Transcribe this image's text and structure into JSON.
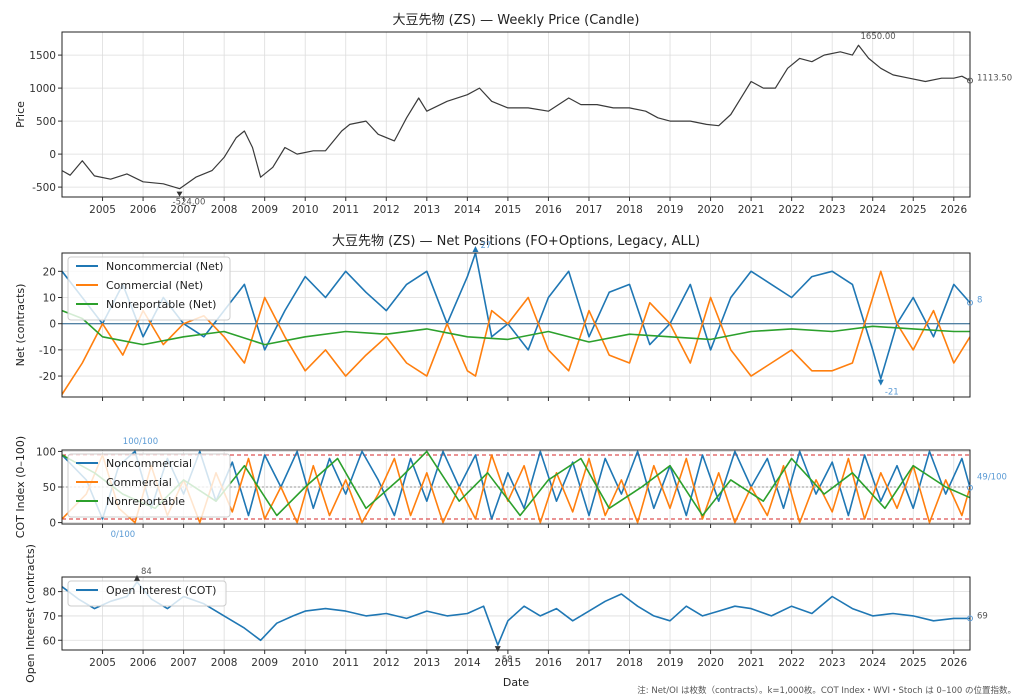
{
  "footnote": "注: Net/OI は枚数（contracts）。k=1,000枚。COT Index・WVI・Stoch は 0–100 の位置指数。",
  "x_axis": {
    "label": "Date",
    "ticks": [
      "2005",
      "2006",
      "2007",
      "2008",
      "2009",
      "2010",
      "2011",
      "2012",
      "2013",
      "2014",
      "2015",
      "2016",
      "2017",
      "2018",
      "2019",
      "2020",
      "2021",
      "2022",
      "2023",
      "2024",
      "2025",
      "2026"
    ],
    "range": [
      2004.0,
      2026.4
    ]
  },
  "colors": {
    "price": "#3a3a3a",
    "noncommercial": "#1f77b4",
    "commercial": "#ff7f0e",
    "nonreportable": "#2ca02c",
    "grid": "#dddddd",
    "refline": "#d62728",
    "annot": "#5b9bd5"
  },
  "chart_data": [
    {
      "id": "price",
      "type": "line",
      "title": "大豆先物 (ZS) — Weekly Price (Candle)",
      "ylabel": "Price",
      "ylim": [
        -650,
        1850
      ],
      "yticks": [
        "-500",
        "0",
        "500",
        "1000",
        "1500"
      ],
      "series": [
        {
          "color": "#3a3a3a",
          "x": [
            2004.0,
            2004.2,
            2004.5,
            2004.8,
            2005.2,
            2005.6,
            2006.0,
            2006.5,
            2006.9,
            2007.3,
            2007.7,
            2008.0,
            2008.3,
            2008.5,
            2008.7,
            2008.9,
            2009.2,
            2009.5,
            2009.8,
            2010.2,
            2010.5,
            2010.9,
            2011.1,
            2011.5,
            2011.8,
            2012.2,
            2012.5,
            2012.8,
            2013.0,
            2013.5,
            2014.0,
            2014.3,
            2014.6,
            2015.0,
            2015.5,
            2016.0,
            2016.5,
            2016.8,
            2017.2,
            2017.6,
            2018.0,
            2018.4,
            2018.7,
            2019.0,
            2019.5,
            2019.9,
            2020.2,
            2020.5,
            2020.8,
            2021.0,
            2021.3,
            2021.6,
            2021.9,
            2022.2,
            2022.5,
            2022.8,
            2023.2,
            2023.5,
            2023.65,
            2023.9,
            2024.2,
            2024.5,
            2024.9,
            2025.3,
            2025.7,
            2026.0,
            2026.2,
            2026.4
          ],
          "y": [
            -250,
            -320,
            -100,
            -330,
            -380,
            -300,
            -420,
            -450,
            -524,
            -350,
            -250,
            -50,
            250,
            350,
            100,
            -350,
            -200,
            100,
            0,
            50,
            50,
            350,
            450,
            500,
            300,
            200,
            550,
            850,
            650,
            800,
            900,
            1000,
            800,
            700,
            700,
            650,
            850,
            750,
            750,
            700,
            700,
            650,
            550,
            500,
            500,
            450,
            430,
            600,
            900,
            1100,
            1000,
            1000,
            1300,
            1450,
            1400,
            1500,
            1550,
            1500,
            1650,
            1450,
            1300,
            1200,
            1150,
            1100,
            1150,
            1150,
            1180,
            1113.5
          ]
        }
      ],
      "annotations": [
        {
          "text": "-524.00"
        },
        {
          "text": "1650.00"
        }
      ],
      "last_value_label": "1113.50"
    },
    {
      "id": "net",
      "type": "line",
      "title": "大豆先物 (ZS) — Net Positions (FO+Options, Legacy, ALL)",
      "ylabel": "Net (contracts)",
      "ylim": [
        -28,
        27
      ],
      "yticks": [
        "-20",
        "-10",
        "0",
        "10",
        "20"
      ],
      "legend": {
        "placement": "top-left",
        "entries": [
          "Noncommercial (Net)",
          "Commercial (Net)",
          "Nonreportable (Net)"
        ]
      },
      "series": [
        {
          "name": "Noncommercial (Net)",
          "color": "#1f77b4",
          "x": [
            2004.0,
            2004.5,
            2005.0,
            2005.5,
            2006.0,
            2006.5,
            2007.0,
            2007.5,
            2008.0,
            2008.5,
            2009.0,
            2009.5,
            2010.0,
            2010.5,
            2011.0,
            2011.5,
            2012.0,
            2012.5,
            2013.0,
            2013.5,
            2014.0,
            2014.2,
            2014.6,
            2015.0,
            2015.5,
            2016.0,
            2016.5,
            2017.0,
            2017.5,
            2018.0,
            2018.5,
            2019.0,
            2019.5,
            2020.0,
            2020.5,
            2021.0,
            2021.5,
            2022.0,
            2022.5,
            2023.0,
            2023.5,
            2024.0,
            2024.2,
            2024.6,
            2025.0,
            2025.5,
            2026.0,
            2026.4
          ],
          "y": [
            20,
            10,
            0,
            15,
            -5,
            10,
            0,
            -5,
            5,
            15,
            -10,
            5,
            18,
            10,
            20,
            12,
            5,
            15,
            20,
            0,
            18,
            27,
            -5,
            0,
            -10,
            10,
            20,
            -5,
            12,
            15,
            -8,
            0,
            15,
            -10,
            10,
            20,
            15,
            10,
            18,
            20,
            15,
            -10,
            -21,
            0,
            10,
            -5,
            15,
            8
          ]
        },
        {
          "name": "Commercial (Net)",
          "color": "#ff7f0e",
          "x": [
            2004.0,
            2004.5,
            2005.0,
            2005.5,
            2006.0,
            2006.5,
            2007.0,
            2007.5,
            2008.0,
            2008.5,
            2009.0,
            2009.5,
            2010.0,
            2010.5,
            2011.0,
            2011.5,
            2012.0,
            2012.5,
            2013.0,
            2013.5,
            2014.0,
            2014.2,
            2014.6,
            2015.0,
            2015.5,
            2016.0,
            2016.5,
            2017.0,
            2017.5,
            2018.0,
            2018.5,
            2019.0,
            2019.5,
            2020.0,
            2020.5,
            2021.0,
            2021.5,
            2022.0,
            2022.5,
            2023.0,
            2023.5,
            2024.0,
            2024.2,
            2024.6,
            2025.0,
            2025.5,
            2026.0,
            2026.4
          ],
          "y": [
            -27,
            -15,
            0,
            -12,
            5,
            -8,
            0,
            3,
            -5,
            -15,
            10,
            -5,
            -18,
            -10,
            -20,
            -12,
            -5,
            -15,
            -20,
            0,
            -18,
            -20,
            5,
            0,
            10,
            -10,
            -18,
            5,
            -12,
            -15,
            8,
            0,
            -15,
            10,
            -10,
            -20,
            -15,
            -10,
            -18,
            -18,
            -15,
            10,
            20,
            0,
            -10,
            5,
            -15,
            -5
          ]
        },
        {
          "name": "Nonreportable (Net)",
          "color": "#2ca02c",
          "x": [
            2004.0,
            2004.5,
            2005.0,
            2006.0,
            2007.0,
            2008.0,
            2009.0,
            2010.0,
            2011.0,
            2012.0,
            2013.0,
            2014.0,
            2015.0,
            2016.0,
            2017.0,
            2018.0,
            2019.0,
            2020.0,
            2021.0,
            2022.0,
            2023.0,
            2024.0,
            2025.0,
            2026.0,
            2026.4
          ],
          "y": [
            5,
            2,
            -5,
            -8,
            -5,
            -3,
            -8,
            -5,
            -3,
            -4,
            -2,
            -5,
            -6,
            -3,
            -7,
            -4,
            -5,
            -6,
            -3,
            -2,
            -3,
            -1,
            -2,
            -3,
            -3
          ]
        }
      ],
      "annotations": [
        {
          "text": "27"
        },
        {
          "text": "-21"
        }
      ],
      "last_value_label": "8"
    },
    {
      "id": "cot",
      "type": "line",
      "title": "",
      "ylabel": "COT Index (0–100)",
      "ylim": [
        -2,
        102
      ],
      "yticks": [
        "0",
        "50",
        "100"
      ],
      "ref_lines": [
        5,
        50,
        95
      ],
      "legend": {
        "placement": "top-left",
        "entries": [
          "Noncommercial",
          "Commercial",
          "Nonreportable"
        ]
      },
      "series": [
        {
          "name": "Noncommercial",
          "color": "#1f77b4",
          "x": [
            2004.0,
            2004.6,
            2005.0,
            2005.4,
            2005.8,
            2006.2,
            2006.6,
            2007.0,
            2007.4,
            2007.8,
            2008.2,
            2008.6,
            2009.0,
            2009.4,
            2009.8,
            2010.2,
            2010.6,
            2011.0,
            2011.4,
            2011.8,
            2012.2,
            2012.6,
            2013.0,
            2013.4,
            2013.8,
            2014.2,
            2014.6,
            2015.0,
            2015.4,
            2015.8,
            2016.2,
            2016.6,
            2017.0,
            2017.4,
            2017.8,
            2018.2,
            2018.6,
            2019.0,
            2019.4,
            2019.8,
            2020.2,
            2020.6,
            2021.0,
            2021.4,
            2021.8,
            2022.2,
            2022.6,
            2023.0,
            2023.4,
            2023.8,
            2024.2,
            2024.6,
            2025.0,
            2025.4,
            2025.8,
            2026.2,
            2026.4
          ],
          "y": [
            95,
            60,
            5,
            80,
            100,
            20,
            90,
            40,
            100,
            30,
            85,
            10,
            95,
            50,
            100,
            20,
            90,
            40,
            100,
            60,
            10,
            90,
            30,
            100,
            50,
            95,
            5,
            70,
            20,
            100,
            30,
            85,
            10,
            90,
            40,
            100,
            20,
            80,
            10,
            95,
            30,
            100,
            50,
            90,
            20,
            100,
            40,
            85,
            10,
            95,
            30,
            80,
            20,
            100,
            40,
            90,
            49
          ]
        },
        {
          "name": "Commercial",
          "color": "#ff7f0e",
          "x": [
            2004.0,
            2004.6,
            2005.0,
            2005.4,
            2005.8,
            2006.2,
            2006.6,
            2007.0,
            2007.4,
            2007.8,
            2008.2,
            2008.6,
            2009.0,
            2009.4,
            2009.8,
            2010.2,
            2010.6,
            2011.0,
            2011.4,
            2011.8,
            2012.2,
            2012.6,
            2013.0,
            2013.4,
            2013.8,
            2014.2,
            2014.6,
            2015.0,
            2015.4,
            2015.8,
            2016.2,
            2016.6,
            2017.0,
            2017.4,
            2017.8,
            2018.2,
            2018.6,
            2019.0,
            2019.4,
            2019.8,
            2020.2,
            2020.6,
            2021.0,
            2021.4,
            2021.8,
            2022.2,
            2022.6,
            2023.0,
            2023.4,
            2023.8,
            2024.2,
            2024.6,
            2025.0,
            2025.4,
            2025.8,
            2026.2,
            2026.4
          ],
          "y": [
            5,
            40,
            95,
            20,
            0,
            80,
            10,
            60,
            0,
            70,
            15,
            90,
            5,
            50,
            0,
            80,
            10,
            60,
            0,
            40,
            90,
            10,
            70,
            0,
            50,
            5,
            95,
            30,
            80,
            0,
            70,
            15,
            90,
            10,
            60,
            0,
            80,
            20,
            90,
            5,
            70,
            0,
            50,
            10,
            80,
            0,
            60,
            15,
            90,
            5,
            70,
            20,
            80,
            0,
            60,
            10,
            50
          ]
        },
        {
          "name": "Nonreportable",
          "color": "#2ca02c",
          "x": [
            2004.0,
            2004.8,
            2005.5,
            2006.3,
            2007.0,
            2007.8,
            2008.5,
            2009.3,
            2010.0,
            2010.8,
            2011.5,
            2012.3,
            2013.0,
            2013.8,
            2014.5,
            2015.3,
            2016.0,
            2016.8,
            2017.5,
            2018.3,
            2019.0,
            2019.8,
            2020.5,
            2021.3,
            2022.0,
            2022.8,
            2023.5,
            2024.3,
            2025.0,
            2025.8,
            2026.4
          ],
          "y": [
            95,
            70,
            40,
            20,
            60,
            30,
            80,
            10,
            50,
            90,
            20,
            60,
            100,
            30,
            70,
            10,
            60,
            90,
            20,
            50,
            80,
            10,
            60,
            30,
            90,
            40,
            70,
            20,
            80,
            50,
            35
          ]
        }
      ],
      "annotations": [
        {
          "text": "100/100"
        },
        {
          "text": "0/100"
        }
      ],
      "last_value_label": "49/100"
    },
    {
      "id": "oi",
      "type": "line",
      "title": "",
      "ylabel": "Open Interest (contracts)",
      "ylim": [
        56,
        86
      ],
      "yticks": [
        "60",
        "70",
        "80"
      ],
      "legend": {
        "placement": "top-left",
        "entries": [
          "Open Interest (COT)"
        ]
      },
      "series": [
        {
          "name": "Open Interest (COT)",
          "color": "#1f77b4",
          "x": [
            2004.0,
            2004.4,
            2004.8,
            2005.2,
            2005.6,
            2005.85,
            2006.2,
            2006.6,
            2007.0,
            2007.5,
            2008.0,
            2008.5,
            2008.9,
            2009.3,
            2009.7,
            2010.0,
            2010.5,
            2011.0,
            2011.5,
            2012.0,
            2012.5,
            2013.0,
            2013.5,
            2014.0,
            2014.4,
            2014.75,
            2015.0,
            2015.4,
            2015.8,
            2016.2,
            2016.6,
            2017.0,
            2017.4,
            2017.8,
            2018.2,
            2018.6,
            2019.0,
            2019.4,
            2019.8,
            2020.2,
            2020.6,
            2021.0,
            2021.5,
            2022.0,
            2022.5,
            2023.0,
            2023.5,
            2024.0,
            2024.5,
            2025.0,
            2025.5,
            2026.0,
            2026.4
          ],
          "y": [
            82,
            77,
            73,
            76,
            78,
            84,
            77,
            73,
            78,
            75,
            70,
            65,
            60,
            67,
            70,
            72,
            73,
            72,
            70,
            71,
            69,
            72,
            70,
            71,
            74,
            58,
            68,
            74,
            70,
            73,
            68,
            72,
            76,
            79,
            74,
            70,
            68,
            74,
            70,
            72,
            74,
            73,
            70,
            74,
            71,
            78,
            73,
            70,
            71,
            70,
            68,
            69,
            69
          ]
        }
      ],
      "annotations": [
        {
          "text": "84"
        },
        {
          "text": "58"
        }
      ],
      "last_value_label": "69"
    }
  ]
}
